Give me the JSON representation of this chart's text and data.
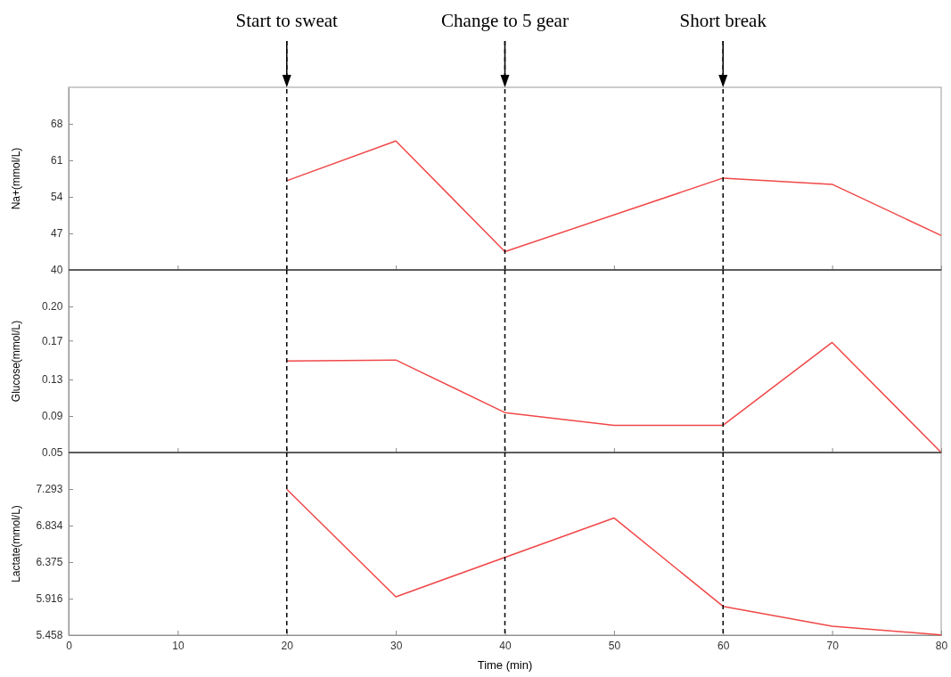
{
  "chart_data": [
    {
      "type": "line",
      "ylabel": "Na+(mmol/L)",
      "xlim": [
        0,
        80
      ],
      "xticks": [
        0,
        10,
        20,
        30,
        40,
        50,
        60,
        70,
        80
      ],
      "ylim": [
        40,
        75
      ],
      "yticks": [
        40,
        47,
        54,
        61,
        68
      ],
      "tick_labels": "y",
      "series": [
        {
          "color": "#f04848",
          "x": [
            20,
            30,
            40,
            60,
            70,
            80
          ],
          "values": [
            57.1,
            64.7,
            43.5,
            57.6,
            56.4,
            46.6
          ]
        }
      ],
      "ref_lines": [
        {
          "axis": "x",
          "value": 20,
          "label": "Start to sweat",
          "line_style": "dashed"
        },
        {
          "axis": "x",
          "value": 40,
          "label": "Change to 5 gear",
          "line_style": "dashed"
        },
        {
          "axis": "x",
          "value": 60,
          "label": "Short break",
          "line_style": "dashed"
        }
      ]
    },
    {
      "type": "line",
      "ylabel": "Glucose(mmol/L)",
      "xlim": [
        0,
        80
      ],
      "xticks": [
        0,
        10,
        20,
        30,
        40,
        50,
        60,
        70,
        80
      ],
      "ylim": [
        0.05,
        0.2375
      ],
      "yticks": [
        {
          "value": 0.05,
          "label": "0.05"
        },
        {
          "value": 0.0875,
          "label": "0.09"
        },
        {
          "value": 0.125,
          "label": "0.13"
        },
        {
          "value": 0.165,
          "label": "0.17"
        },
        {
          "value": 0.2,
          "label": "0.20"
        }
      ],
      "tick_labels": "y",
      "series": [
        {
          "color": "#f04848",
          "x": [
            20,
            30,
            40,
            50,
            60,
            70,
            80
          ],
          "values": [
            0.144,
            0.145,
            0.091,
            0.078,
            0.078,
            0.163,
            0.05
          ]
        }
      ],
      "ref_lines": [
        {
          "axis": "x",
          "value": 20,
          "line_style": "dashed"
        },
        {
          "axis": "x",
          "value": 40,
          "line_style": "dashed"
        },
        {
          "axis": "x",
          "value": 60,
          "line_style": "dashed"
        }
      ]
    },
    {
      "type": "line",
      "xlabel": "Time (min)",
      "ylabel": "Lactate(mmol/L)",
      "xlim": [
        0,
        80
      ],
      "xticks": [
        0,
        10,
        20,
        30,
        40,
        50,
        60,
        70,
        80
      ],
      "ylim": [
        5.458,
        7.752
      ],
      "yticks": [
        5.458,
        5.916,
        6.375,
        6.834,
        7.293
      ],
      "series": [
        {
          "color": "#f04848",
          "x": [
            20,
            30,
            50,
            60,
            70,
            80
          ],
          "values": [
            7.29,
            5.94,
            6.93,
            5.82,
            5.57,
            5.46
          ]
        }
      ],
      "ref_lines": [
        {
          "axis": "x",
          "value": 20,
          "line_style": "dashed"
        },
        {
          "axis": "x",
          "value": 40,
          "line_style": "dashed"
        },
        {
          "axis": "x",
          "value": 60,
          "line_style": "dashed"
        }
      ]
    }
  ]
}
